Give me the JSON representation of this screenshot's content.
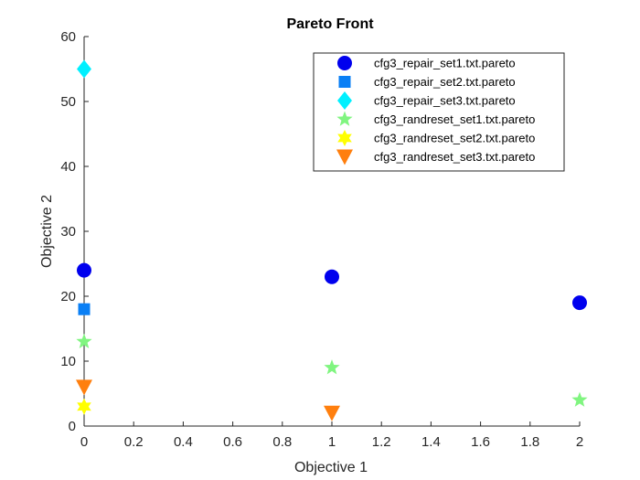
{
  "chart_data": {
    "type": "scatter",
    "title": "Pareto Front",
    "xlabel": "Objective 1",
    "ylabel": "Objective 2",
    "xlim": [
      0,
      2
    ],
    "ylim": [
      0,
      60
    ],
    "xticks": [
      "0",
      "0.2",
      "0.4",
      "0.6",
      "0.8",
      "1",
      "1.2",
      "1.4",
      "1.6",
      "1.8",
      "2"
    ],
    "yticks": [
      "0",
      "10",
      "20",
      "30",
      "40",
      "50",
      "60"
    ],
    "grid": false,
    "legend_position": "top-right",
    "series": [
      {
        "name": "cfg3_repair_set1.txt.pareto",
        "marker": "circle",
        "color": "#0000ee",
        "points": [
          [
            0,
            24
          ],
          [
            1,
            23
          ],
          [
            2,
            19
          ]
        ]
      },
      {
        "name": "cfg3_repair_set2.txt.pareto",
        "marker": "square",
        "color": "#0a7ff5",
        "points": [
          [
            0,
            18
          ]
        ]
      },
      {
        "name": "cfg3_repair_set3.txt.pareto",
        "marker": "diamond",
        "color": "#00f0ff",
        "points": [
          [
            0,
            55
          ]
        ]
      },
      {
        "name": "cfg3_randreset_set1.txt.pareto",
        "marker": "star5",
        "color": "#80f580",
        "points": [
          [
            0,
            13
          ],
          [
            1,
            9
          ],
          [
            2,
            4
          ]
        ]
      },
      {
        "name": "cfg3_randreset_set2.txt.pareto",
        "marker": "star6",
        "color": "#ffff00",
        "points": [
          [
            0,
            3
          ]
        ]
      },
      {
        "name": "cfg3_randreset_set3.txt.pareto",
        "marker": "triangle-down",
        "color": "#ff7f0e",
        "points": [
          [
            0,
            6
          ],
          [
            1,
            2
          ]
        ]
      }
    ]
  }
}
